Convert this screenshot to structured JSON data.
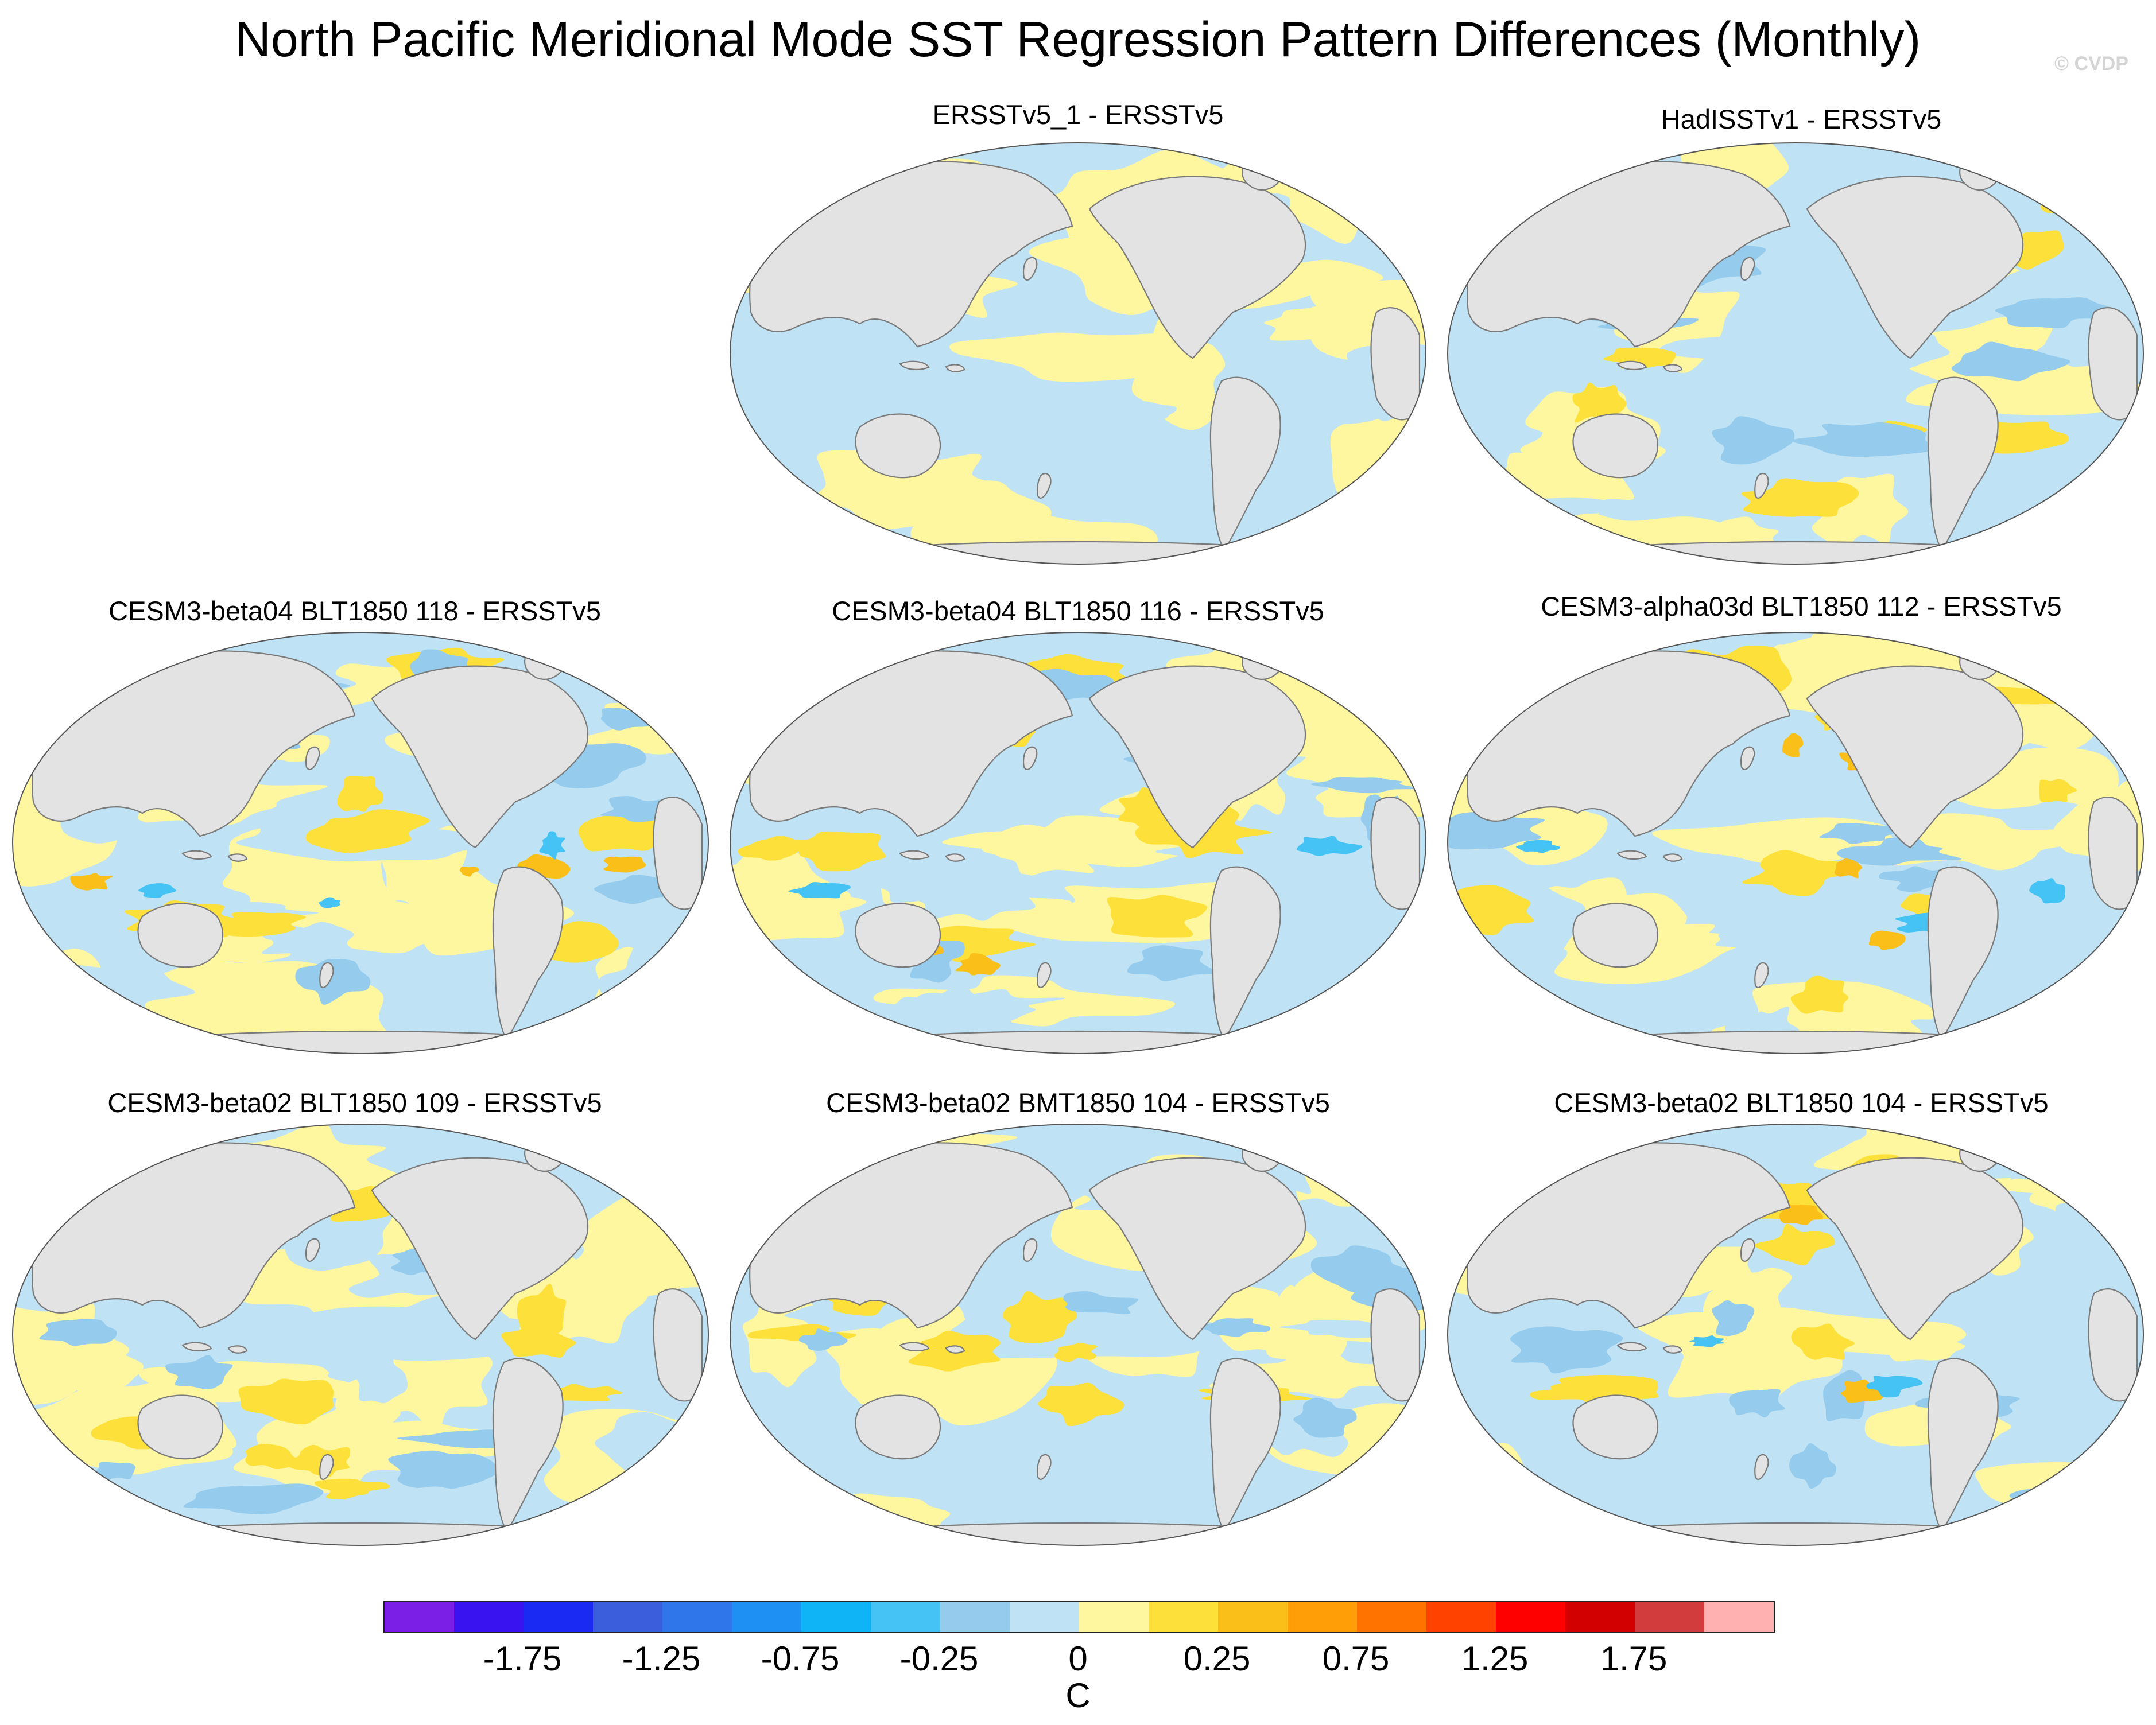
{
  "title": "North Pacific Meridional Mode SST Regression Pattern Differences (Monthly)",
  "watermark": "© CVDP",
  "colors": {
    "land": "#e3e3e3",
    "coast": "#7a7a7a",
    "neg_weak": "#bfe2f4",
    "neg_mod": "#95cbec",
    "neg_strong": "#45c3f5",
    "pos_weak": "#fff6a0",
    "pos_mod": "#fde13a",
    "pos_strong": "#fbbf19"
  },
  "panels": [
    {
      "title": "ERSSTv5_1 - ERSSTv5",
      "max_anomaly": 0.25
    },
    {
      "title": "HadISSTv1 - ERSSTv5",
      "max_anomaly": 0.5
    },
    {
      "title": "CESM3-beta04 BLT1850 118 - ERSSTv5",
      "max_anomaly": 0.75
    },
    {
      "title": "CESM3-beta04 BLT1850 116 - ERSSTv5",
      "max_anomaly": 0.75
    },
    {
      "title": "CESM3-alpha03d BLT1850 112 - ERSSTv5",
      "max_anomaly": 0.75
    },
    {
      "title": "CESM3-beta02 BLT1850 109 - ERSSTv5",
      "max_anomaly": 0.5
    },
    {
      "title": "CESM3-beta02 BMT1850 104 - ERSSTv5",
      "max_anomaly": 0.5
    },
    {
      "title": "CESM3-beta02 BLT1850 104 - ERSSTv5",
      "max_anomaly": 0.75
    }
  ],
  "colorbar": {
    "unit": "C",
    "colors": [
      "#7b1fe6",
      "#3a14f0",
      "#1b2af2",
      "#3b5fdc",
      "#2e76ea",
      "#1e90f4",
      "#0fb4f7",
      "#45c3f5",
      "#95cbec",
      "#bfe2f4",
      "#fff6a0",
      "#fde13a",
      "#fbbf19",
      "#ff9e07",
      "#ff7300",
      "#ff4200",
      "#ff0000",
      "#d20000",
      "#d23c3c",
      "#ffb1b1"
    ],
    "labels": [
      "-1.75",
      "-1.25",
      "-0.75",
      "-0.25",
      "0",
      "0.25",
      "0.75",
      "1.25",
      "1.75"
    ],
    "label_values": [
      -1.75,
      -1.25,
      -0.75,
      -0.25,
      0,
      0.25,
      0.75,
      1.25,
      1.75
    ]
  }
}
